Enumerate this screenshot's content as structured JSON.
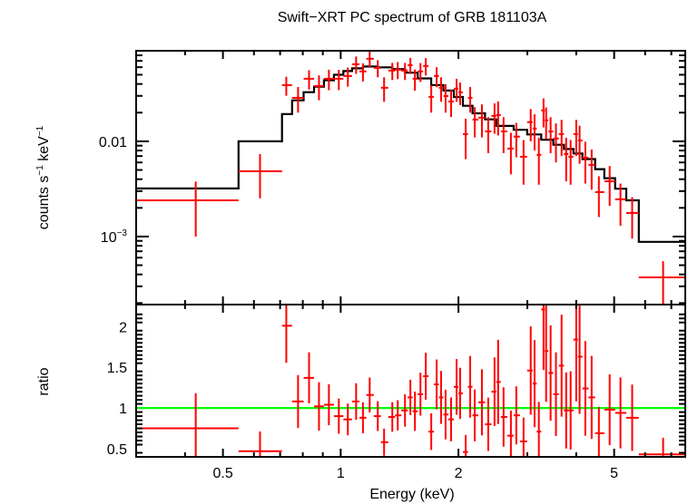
{
  "chart_data": {
    "type": "scatter",
    "title": "Swift−XRT PC spectrum of GRB 181103A",
    "xlabel": "Energy (keV)",
    "xscale": "log",
    "xlim": [
      0.3,
      7.6
    ],
    "x_ticks": [
      {
        "value": 0.5,
        "label": "0.5"
      },
      {
        "value": 1,
        "label": "1"
      },
      {
        "value": 2,
        "label": "2"
      },
      {
        "value": 5,
        "label": "5"
      }
    ],
    "panels": [
      {
        "name": "spectrum",
        "ylabel": "counts s⁻¹ keV⁻¹",
        "ylabel_parts": {
          "base1": "counts s",
          "sup1": "−1",
          "base2": " keV",
          "sup2": "−1"
        },
        "yscale": "log",
        "ylim": [
          0.000193,
          0.0893
        ],
        "y_ticks": [
          {
            "value": 0.01,
            "label": "0.01"
          },
          {
            "value": 0.001,
            "label_base": "10",
            "label_sup": "−3"
          }
        ],
        "series": [
          {
            "name": "data",
            "color": "#ff0000",
            "kind": "errorbars",
            "points": [
              {
                "e": 0.426,
                "e_lo": 0.3,
                "e_hi": 0.548,
                "y": 0.0024,
                "y_lo": 0.001,
                "y_hi": 0.00378
              },
              {
                "e": 0.622,
                "e_lo": 0.548,
                "e_hi": 0.708,
                "y": 0.00485,
                "y_lo": 0.00252,
                "y_hi": 0.00735
              },
              {
                "e": 0.726,
                "e_lo": 0.708,
                "e_hi": 0.751,
                "y": 0.0389,
                "y_lo": 0.0301,
                "y_hi": 0.0477
              },
              {
                "e": 0.778,
                "e_lo": 0.751,
                "e_hi": 0.804,
                "y": 0.0286,
                "y_lo": 0.02,
                "y_hi": 0.0372
              },
              {
                "e": 0.83,
                "e_lo": 0.804,
                "e_hi": 0.855,
                "y": 0.0454,
                "y_lo": 0.035,
                "y_hi": 0.0558
              },
              {
                "e": 0.88,
                "e_lo": 0.855,
                "e_hi": 0.906,
                "y": 0.0381,
                "y_lo": 0.027,
                "y_hi": 0.0492
              },
              {
                "e": 0.933,
                "e_lo": 0.906,
                "e_hi": 0.961,
                "y": 0.0454,
                "y_lo": 0.0344,
                "y_hi": 0.0564
              },
              {
                "e": 0.989,
                "e_lo": 0.961,
                "e_hi": 1.016,
                "y": 0.0454,
                "y_lo": 0.0345,
                "y_hi": 0.0563
              },
              {
                "e": 1.043,
                "e_lo": 1.016,
                "e_hi": 1.069,
                "y": 0.0485,
                "y_lo": 0.0375,
                "y_hi": 0.0595
              },
              {
                "e": 1.095,
                "e_lo": 1.069,
                "e_hi": 1.117,
                "y": 0.0644,
                "y_lo": 0.051,
                "y_hi": 0.0778
              },
              {
                "e": 1.14,
                "e_lo": 1.117,
                "e_hi": 1.163,
                "y": 0.0542,
                "y_lo": 0.0425,
                "y_hi": 0.0659
              },
              {
                "e": 1.186,
                "e_lo": 1.163,
                "e_hi": 1.215,
                "y": 0.0736,
                "y_lo": 0.06,
                "y_hi": 0.0872
              },
              {
                "e": 1.244,
                "e_lo": 1.215,
                "e_hi": 1.267,
                "y": 0.059,
                "y_lo": 0.047,
                "y_hi": 0.071
              },
              {
                "e": 1.291,
                "e_lo": 1.267,
                "e_hi": 1.323,
                "y": 0.0365,
                "y_lo": 0.026,
                "y_hi": 0.047
              },
              {
                "e": 1.355,
                "e_lo": 1.323,
                "e_hi": 1.377,
                "y": 0.0553,
                "y_lo": 0.044,
                "y_hi": 0.0666
              },
              {
                "e": 1.399,
                "e_lo": 1.377,
                "e_hi": 1.429,
                "y": 0.0565,
                "y_lo": 0.045,
                "y_hi": 0.068
              },
              {
                "e": 1.46,
                "e_lo": 1.429,
                "e_hi": 1.483,
                "y": 0.0553,
                "y_lo": 0.044,
                "y_hi": 0.0666
              },
              {
                "e": 1.507,
                "e_lo": 1.483,
                "e_hi": 1.527,
                "y": 0.0631,
                "y_lo": 0.051,
                "y_hi": 0.0752
              },
              {
                "e": 1.548,
                "e_lo": 1.527,
                "e_hi": 1.573,
                "y": 0.0454,
                "y_lo": 0.034,
                "y_hi": 0.0568
              },
              {
                "e": 1.599,
                "e_lo": 1.573,
                "e_hi": 1.624,
                "y": 0.0542,
                "y_lo": 0.042,
                "y_hi": 0.0664
              },
              {
                "e": 1.65,
                "e_lo": 1.624,
                "e_hi": 1.677,
                "y": 0.0618,
                "y_lo": 0.049,
                "y_hi": 0.0746
              },
              {
                "e": 1.704,
                "e_lo": 1.677,
                "e_hi": 1.731,
                "y": 0.0293,
                "y_lo": 0.02,
                "y_hi": 0.0386
              },
              {
                "e": 1.759,
                "e_lo": 1.731,
                "e_hi": 1.782,
                "y": 0.0485,
                "y_lo": 0.037,
                "y_hi": 0.06
              },
              {
                "e": 1.806,
                "e_lo": 1.782,
                "e_hi": 1.83,
                "y": 0.0365,
                "y_lo": 0.026,
                "y_hi": 0.047
              },
              {
                "e": 1.854,
                "e_lo": 1.83,
                "e_hi": 1.884,
                "y": 0.0299,
                "y_lo": 0.02,
                "y_hi": 0.0398
              },
              {
                "e": 1.915,
                "e_lo": 1.884,
                "e_hi": 1.946,
                "y": 0.0262,
                "y_lo": 0.018,
                "y_hi": 0.0344
              },
              {
                "e": 1.978,
                "e_lo": 1.946,
                "e_hi": 1.999,
                "y": 0.0357,
                "y_lo": 0.026,
                "y_hi": 0.0454
              },
              {
                "e": 2.02,
                "e_lo": 1.999,
                "e_hi": 2.053,
                "y": 0.0327,
                "y_lo": 0.024,
                "y_hi": 0.0414
              },
              {
                "e": 2.087,
                "e_lo": 2.053,
                "e_hi": 2.115,
                "y": 0.0119,
                "y_lo": 0.0065,
                "y_hi": 0.0173
              },
              {
                "e": 2.143,
                "e_lo": 2.115,
                "e_hi": 2.172,
                "y": 0.0286,
                "y_lo": 0.02,
                "y_hi": 0.0372
              },
              {
                "e": 2.201,
                "e_lo": 2.172,
                "e_hi": 2.248,
                "y": 0.0169,
                "y_lo": 0.011,
                "y_hi": 0.0228
              },
              {
                "e": 2.296,
                "e_lo": 2.248,
                "e_hi": 2.339,
                "y": 0.0177,
                "y_lo": 0.011,
                "y_hi": 0.0244
              },
              {
                "e": 2.383,
                "e_lo": 2.339,
                "e_hi": 2.428,
                "y": 0.0127,
                "y_lo": 0.0075,
                "y_hi": 0.0179
              },
              {
                "e": 2.473,
                "e_lo": 2.428,
                "e_hi": 2.499,
                "y": 0.0185,
                "y_lo": 0.012,
                "y_hi": 0.025
              },
              {
                "e": 2.526,
                "e_lo": 2.499,
                "e_hi": 2.567,
                "y": 0.0189,
                "y_lo": 0.0115,
                "y_hi": 0.0263
              },
              {
                "e": 2.608,
                "e_lo": 2.567,
                "e_hi": 2.665,
                "y": 0.0127,
                "y_lo": 0.0075,
                "y_hi": 0.0179
              },
              {
                "e": 2.723,
                "e_lo": 2.665,
                "e_hi": 2.767,
                "y": 0.00839,
                "y_lo": 0.0045,
                "y_hi": 0.0123
              },
              {
                "e": 2.811,
                "e_lo": 2.767,
                "e_hi": 2.872,
                "y": 0.0112,
                "y_lo": 0.0068,
                "y_hi": 0.0156
              },
              {
                "e": 2.934,
                "e_lo": 2.872,
                "e_hi": 2.996,
                "y": 0.00689,
                "y_lo": 0.0035,
                "y_hi": 0.0103
              },
              {
                "e": 3.06,
                "e_lo": 2.996,
                "e_hi": 3.095,
                "y": 0.0159,
                "y_lo": 0.01,
                "y_hi": 0.0218
              },
              {
                "e": 3.13,
                "e_lo": 3.095,
                "e_hi": 3.17,
                "y": 0.0136,
                "y_lo": 0.008,
                "y_hi": 0.0192
              },
              {
                "e": 3.21,
                "e_lo": 3.17,
                "e_hi": 3.255,
                "y": 0.0072,
                "y_lo": 0.0035,
                "y_hi": 0.0109
              },
              {
                "e": 3.3,
                "e_lo": 3.255,
                "e_hi": 3.325,
                "y": 0.0211,
                "y_lo": 0.014,
                "y_hi": 0.0282
              },
              {
                "e": 3.35,
                "e_lo": 3.325,
                "e_hi": 3.395,
                "y": 0.0166,
                "y_lo": 0.0105,
                "y_hi": 0.0227
              },
              {
                "e": 3.44,
                "e_lo": 3.395,
                "e_hi": 3.495,
                "y": 0.0127,
                "y_lo": 0.0075,
                "y_hi": 0.0179
              },
              {
                "e": 3.55,
                "e_lo": 3.495,
                "e_hi": 3.61,
                "y": 0.0107,
                "y_lo": 0.006,
                "y_hi": 0.0154
              },
              {
                "e": 3.67,
                "e_lo": 3.61,
                "e_hi": 3.72,
                "y": 0.0119,
                "y_lo": 0.007,
                "y_hi": 0.0168
              },
              {
                "e": 3.77,
                "e_lo": 3.72,
                "e_hi": 3.82,
                "y": 0.00736,
                "y_lo": 0.0038,
                "y_hi": 0.0109
              },
              {
                "e": 3.87,
                "e_lo": 3.82,
                "e_hi": 3.935,
                "y": 0.00689,
                "y_lo": 0.0035,
                "y_hi": 0.0103
              },
              {
                "e": 4.0,
                "e_lo": 3.935,
                "e_hi": 4.04,
                "y": 0.0119,
                "y_lo": 0.007,
                "y_hi": 0.0168
              },
              {
                "e": 4.08,
                "e_lo": 4.04,
                "e_hi": 4.15,
                "y": 0.0102,
                "y_lo": 0.0058,
                "y_hi": 0.0146
              },
              {
                "e": 4.22,
                "e_lo": 4.15,
                "e_hi": 4.3,
                "y": 0.00674,
                "y_lo": 0.0036,
                "y_hi": 0.0099
              },
              {
                "e": 4.38,
                "e_lo": 4.3,
                "e_hi": 4.47,
                "y": 0.00565,
                "y_lo": 0.0031,
                "y_hi": 0.0082
              },
              {
                "e": 4.57,
                "e_lo": 4.47,
                "e_hi": 4.72,
                "y": 0.00293,
                "y_lo": 0.0016,
                "y_hi": 0.0043
              },
              {
                "e": 4.87,
                "e_lo": 4.72,
                "e_hi": 5.03,
                "y": 0.00381,
                "y_lo": 0.0021,
                "y_hi": 0.0055
              },
              {
                "e": 5.19,
                "e_lo": 5.03,
                "e_hi": 5.37,
                "y": 0.00246,
                "y_lo": 0.0013,
                "y_hi": 0.0036
              },
              {
                "e": 5.56,
                "e_lo": 5.37,
                "e_hi": 5.78,
                "y": 0.00177,
                "y_lo": 0.00095,
                "y_hi": 0.00259
              },
              {
                "e": 6.67,
                "e_lo": 5.78,
                "e_hi": 7.6,
                "y": 0.000373,
                "y_lo": 0.000195,
                "y_hi": 0.000551
              }
            ]
          },
          {
            "name": "model",
            "color": "#000000",
            "kind": "step",
            "bins": [
              {
                "e_lo": 0.3,
                "e_hi": 0.548,
                "y": 0.0032
              },
              {
                "e_lo": 0.548,
                "e_hi": 0.708,
                "y": 0.01
              },
              {
                "e_lo": 0.708,
                "e_hi": 0.751,
                "y": 0.0193
              },
              {
                "e_lo": 0.751,
                "e_hi": 0.804,
                "y": 0.0269
              },
              {
                "e_lo": 0.804,
                "e_hi": 0.855,
                "y": 0.0328
              },
              {
                "e_lo": 0.855,
                "e_hi": 0.906,
                "y": 0.0375
              },
              {
                "e_lo": 0.906,
                "e_hi": 0.961,
                "y": 0.0438
              },
              {
                "e_lo": 0.961,
                "e_hi": 1.016,
                "y": 0.05
              },
              {
                "e_lo": 1.016,
                "e_hi": 1.069,
                "y": 0.0547
              },
              {
                "e_lo": 1.069,
                "e_hi": 1.14,
                "y": 0.0584
              },
              {
                "e_lo": 1.14,
                "e_hi": 1.244,
                "y": 0.061
              },
              {
                "e_lo": 1.244,
                "e_hi": 1.355,
                "y": 0.0598
              },
              {
                "e_lo": 1.355,
                "e_hi": 1.46,
                "y": 0.0573
              },
              {
                "e_lo": 1.46,
                "e_hi": 1.573,
                "y": 0.0525
              },
              {
                "e_lo": 1.573,
                "e_hi": 1.704,
                "y": 0.0458
              },
              {
                "e_lo": 1.704,
                "e_hi": 1.83,
                "y": 0.039
              },
              {
                "e_lo": 1.83,
                "e_hi": 1.946,
                "y": 0.0341
              },
              {
                "e_lo": 1.946,
                "e_hi": 2.053,
                "y": 0.0292
              },
              {
                "e_lo": 2.053,
                "e_hi": 2.172,
                "y": 0.0236
              },
              {
                "e_lo": 2.172,
                "e_hi": 2.339,
                "y": 0.0197
              },
              {
                "e_lo": 2.339,
                "e_hi": 2.499,
                "y": 0.017
              },
              {
                "e_lo": 2.499,
                "e_hi": 2.767,
                "y": 0.0145
              },
              {
                "e_lo": 2.767,
                "e_hi": 2.996,
                "y": 0.0132
              },
              {
                "e_lo": 2.996,
                "e_hi": 3.255,
                "y": 0.0118
              },
              {
                "e_lo": 3.255,
                "e_hi": 3.495,
                "y": 0.0104
              },
              {
                "e_lo": 3.495,
                "e_hi": 3.72,
                "y": 0.0092
              },
              {
                "e_lo": 3.72,
                "e_hi": 3.935,
                "y": 0.0083
              },
              {
                "e_lo": 3.935,
                "e_hi": 4.15,
                "y": 0.00745
              },
              {
                "e_lo": 4.15,
                "e_hi": 4.47,
                "y": 0.0065
              },
              {
                "e_lo": 4.47,
                "e_hi": 4.72,
                "y": 0.0051
              },
              {
                "e_lo": 4.72,
                "e_hi": 5.03,
                "y": 0.0041
              },
              {
                "e_lo": 5.03,
                "e_hi": 5.37,
                "y": 0.00318
              },
              {
                "e_lo": 5.37,
                "e_hi": 5.78,
                "y": 0.0024
              },
              {
                "e_lo": 5.78,
                "e_hi": 7.6,
                "y": 0.00088
              }
            ]
          }
        ]
      },
      {
        "name": "ratio",
        "ylabel": "ratio",
        "yscale": "linear",
        "ylim": [
          0.4,
          2.27
        ],
        "y_ticks": [
          {
            "value": 0.5,
            "label": "0.5"
          },
          {
            "value": 1,
            "label": "1"
          },
          {
            "value": 1.5,
            "label": "1.5"
          },
          {
            "value": 2,
            "label": "2"
          }
        ],
        "reference_line": {
          "value": 1,
          "color": "#00ff00"
        },
        "series": [
          {
            "name": "ratio",
            "color": "#ff0000",
            "kind": "errorbars",
            "values": [
              0.75,
              0.47,
              2.01,
              1.08,
              1.37,
              1.02,
              1.04,
              0.9,
              0.86,
              1.08,
              0.88,
              1.16,
              0.9,
              0.58,
              0.89,
              0.91,
              0.97,
              1.13,
              0.96,
              1.17,
              1.39,
              0.71,
              1.29,
              1.13,
              0.92,
              0.86,
              1.26,
              1.18,
              0.46,
              1.26,
              0.91,
              1.07,
              0.8,
              1.2,
              1.32,
              0.89,
              0.66,
              0.91,
              0.59,
              1.46,
              1.3,
              0.71,
              2.21,
              1.7,
              1.43,
              1.17,
              1.52,
              0.97,
              0.97,
              1.84,
              1.63,
              1.24,
              1.13,
              0.69,
              0.98,
              0.94,
              0.88,
              0.43
            ]
          }
        ]
      }
    ]
  }
}
